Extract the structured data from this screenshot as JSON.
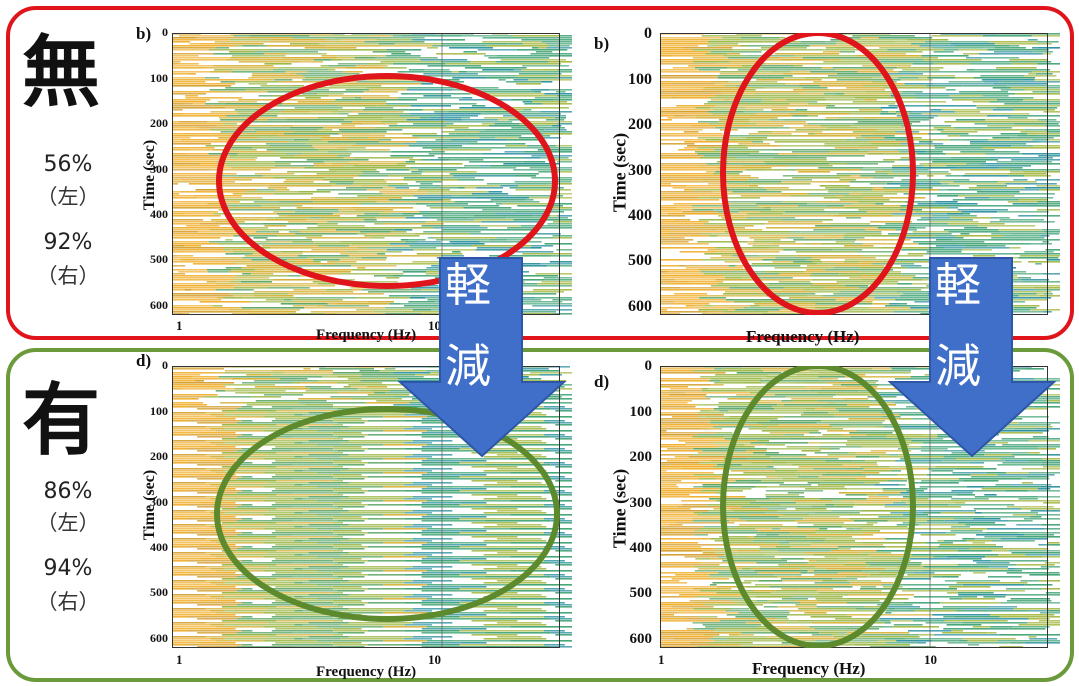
{
  "colors": {
    "red": "#e0141b",
    "green": "#5e8a2e",
    "arrow": "#3f6fc8"
  },
  "rows": [
    {
      "kanji": "無",
      "left_pct": "56%",
      "left_paren": "（左）",
      "right_pct": "92%",
      "right_paren": "（右）"
    },
    {
      "kanji": "有",
      "left_pct": "86%",
      "left_paren": "（左）",
      "right_pct": "94%",
      "right_paren": "（右）"
    }
  ],
  "arrow_text": {
    "line1": "軽",
    "line2": "減"
  },
  "chart_data": [
    {
      "type": "heatmap",
      "panel_label": "b)",
      "xlabel": "Frequency (Hz)",
      "ylabel": "Time (sec)",
      "xscale": "log",
      "x_ticks": [
        "1",
        "10"
      ],
      "y_ticks": [
        "0",
        "100",
        "200",
        "300",
        "400",
        "500",
        "600"
      ],
      "ylim": [
        0,
        620
      ],
      "ellipse_color": "red"
    },
    {
      "type": "heatmap",
      "panel_label": "b)",
      "xlabel": "Frequency  (Hz)",
      "ylabel": "Time  (sec)",
      "xscale": "log",
      "x_ticks": [],
      "y_ticks": [
        "0",
        "100",
        "200",
        "300",
        "400",
        "500",
        "600"
      ],
      "ylim": [
        0,
        620
      ],
      "ellipse_color": "red"
    },
    {
      "type": "heatmap",
      "panel_label": "d)",
      "xlabel": "Frequency (Hz)",
      "ylabel": "Time (sec)",
      "xscale": "log",
      "x_ticks": [
        "1",
        "10"
      ],
      "y_ticks": [
        "0",
        "100",
        "200",
        "300",
        "400",
        "500",
        "600"
      ],
      "ylim": [
        0,
        620
      ],
      "ellipse_color": "green"
    },
    {
      "type": "heatmap",
      "panel_label": "d)",
      "xlabel": "Frequency  (Hz)",
      "ylabel": "Time  (sec)",
      "xscale": "log",
      "x_ticks": [
        "1",
        "10"
      ],
      "y_ticks": [
        "0",
        "100",
        "200",
        "300",
        "400",
        "500",
        "600"
      ],
      "ylim": [
        0,
        620
      ],
      "ellipse_color": "green"
    }
  ]
}
